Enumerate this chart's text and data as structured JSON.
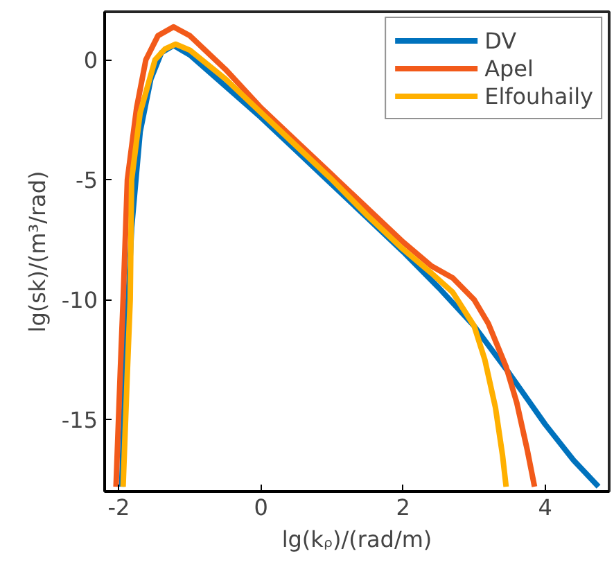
{
  "chart_data": {
    "type": "line",
    "xlabel": "lg(kᵨ)/(rad/m)",
    "ylabel": "lg(sk)/(m³/rad)",
    "xlim": [
      -2.2,
      4.9
    ],
    "ylim": [
      -18,
      2
    ],
    "xticks": [
      -2,
      0,
      2,
      4
    ],
    "yticks": [
      -15,
      -10,
      -5,
      0
    ],
    "grid": false,
    "legend": "top right",
    "line_style": "solid",
    "series": [
      {
        "name": "DV",
        "color": "#0072bd",
        "x": [
          -1.96,
          -1.9,
          -1.82,
          -1.7,
          -1.55,
          -1.4,
          -1.23,
          -1.0,
          -0.5,
          0,
          0.5,
          1,
          1.5,
          2,
          2.5,
          3,
          3.5,
          4,
          4.4,
          4.75
        ],
        "values": [
          -17.8,
          -12,
          -7,
          -3,
          -0.8,
          0.3,
          0.6,
          0.2,
          -1.1,
          -2.4,
          -3.8,
          -5.2,
          -6.6,
          -8.0,
          -9.5,
          -11.1,
          -13.1,
          -15.2,
          -16.7,
          -17.8
        ]
      },
      {
        "name": "Apel",
        "color": "#f25a1a",
        "x": [
          -2.04,
          -1.98,
          -1.94,
          -1.88,
          -1.75,
          -1.62,
          -1.45,
          -1.23,
          -1.0,
          -0.5,
          0,
          0.5,
          1,
          1.5,
          2,
          2.4,
          2.7,
          3.0,
          3.2,
          3.45,
          3.6,
          3.75,
          3.85
        ],
        "values": [
          -17.8,
          -13,
          -10,
          -5,
          -2,
          0,
          1.0,
          1.37,
          1.0,
          -0.4,
          -2.0,
          -3.4,
          -4.8,
          -6.2,
          -7.6,
          -8.6,
          -9.1,
          -10.0,
          -11.0,
          -12.8,
          -14.3,
          -16.3,
          -17.8
        ]
      },
      {
        "name": "Elfouhaily",
        "color": "#ffb000",
        "x": [
          -1.94,
          -1.88,
          -1.84,
          -1.82,
          -1.7,
          -1.49,
          -1.35,
          -1.2,
          -1.0,
          -0.5,
          0,
          0.5,
          1,
          1.5,
          2,
          2.4,
          2.7,
          3.0,
          3.15,
          3.3,
          3.4,
          3.45
        ],
        "values": [
          -17.8,
          -13,
          -10,
          -5,
          -2.2,
          0,
          0.45,
          0.65,
          0.4,
          -0.8,
          -2.2,
          -3.6,
          -5.0,
          -6.5,
          -7.9,
          -8.9,
          -9.7,
          -11.1,
          -12.5,
          -14.5,
          -16.5,
          -17.8
        ]
      }
    ]
  }
}
